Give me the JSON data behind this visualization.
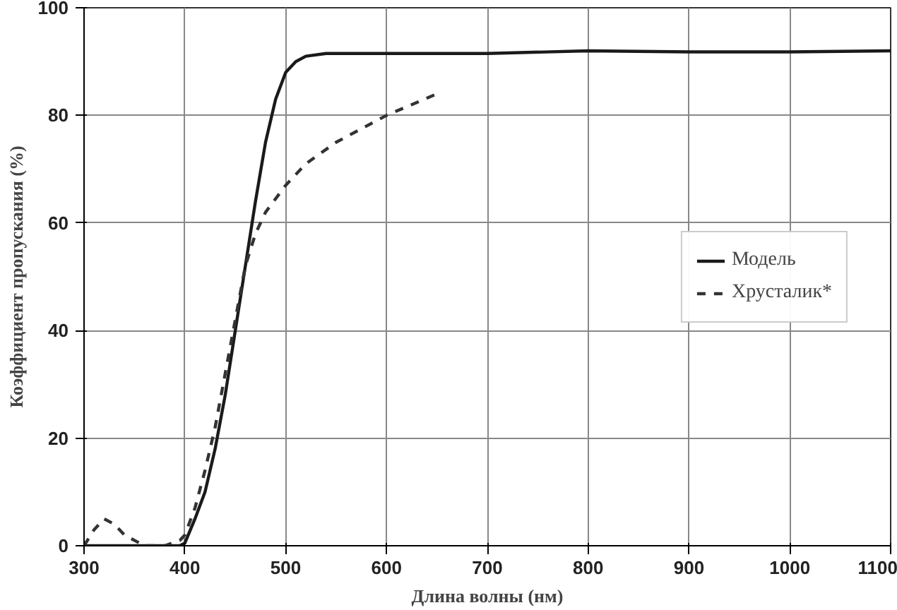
{
  "chart_data": {
    "type": "line",
    "xlabel": "Длина волны (нм)",
    "ylabel": "Коэффициент пропускания (%)",
    "xlim": [
      300,
      1100
    ],
    "ylim": [
      0,
      100
    ],
    "xticks": [
      300,
      400,
      500,
      600,
      700,
      800,
      900,
      1000,
      1100
    ],
    "yticks": [
      0,
      20,
      40,
      60,
      80,
      100
    ],
    "grid": true,
    "legend": "right",
    "series": [
      {
        "name": "Модель",
        "color": "#1a1a1a",
        "line_style": "solid",
        "x": [
          300,
          350,
          395,
          400,
          410,
          420,
          430,
          440,
          450,
          460,
          470,
          480,
          490,
          500,
          510,
          520,
          540,
          600,
          700,
          800,
          900,
          1000,
          1100
        ],
        "values": [
          0,
          0,
          0,
          0.5,
          5,
          10,
          18,
          28,
          40,
          52,
          64,
          75,
          83,
          88,
          90,
          91,
          91.5,
          91.5,
          91.5,
          92,
          91.8,
          91.8,
          92
        ]
      },
      {
        "name": "Хрусталик*",
        "color": "#333333",
        "line_style": "dashed",
        "x": [
          300,
          310,
          320,
          330,
          340,
          360,
          380,
          395,
          400,
          410,
          420,
          430,
          440,
          450,
          460,
          470,
          480,
          500,
          520,
          550,
          600,
          650
        ],
        "values": [
          0,
          3,
          5,
          4,
          2,
          0,
          0,
          1,
          2,
          7,
          14,
          22,
          32,
          42,
          52,
          58,
          62,
          67,
          71,
          75,
          80,
          84
        ]
      }
    ]
  }
}
